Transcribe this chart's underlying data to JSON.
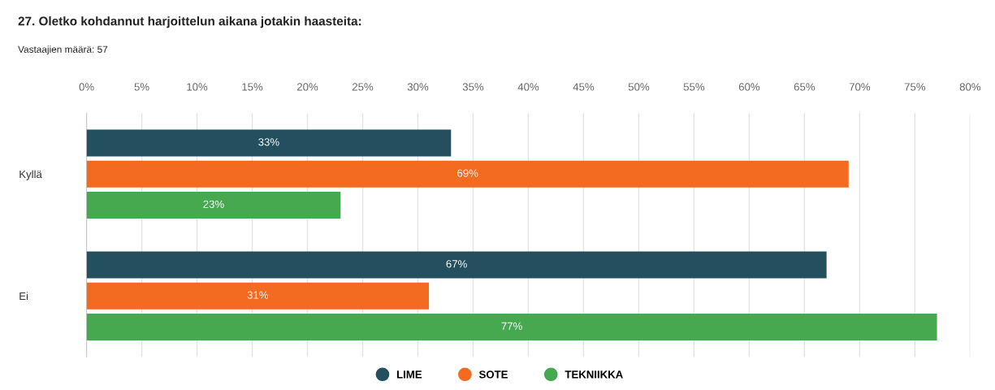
{
  "chart_data": {
    "type": "bar",
    "orientation": "horizontal",
    "title": "27. Oletko kohdannut harjoittelun aikana jotakin haasteita:",
    "subtitle": "Vastaajien määrä: 57",
    "categories": [
      "Kyllä",
      "Ei"
    ],
    "series": [
      {
        "name": "LIME",
        "color": "#234f5e",
        "values": [
          33,
          67
        ],
        "value_labels": [
          "33%",
          "67%"
        ]
      },
      {
        "name": "SOTE",
        "color": "#f26b21",
        "values": [
          69,
          31
        ],
        "value_labels": [
          "69%",
          "31%"
        ]
      },
      {
        "name": "TEKNIIKKA",
        "color": "#46a84f",
        "values": [
          23,
          77
        ],
        "value_labels": [
          "23%",
          "77%"
        ]
      }
    ],
    "xlim": [
      0,
      80
    ],
    "xticks": [
      {
        "value": 0,
        "label": "0%"
      },
      {
        "value": 5,
        "label": "5%"
      },
      {
        "value": 10,
        "label": "10%"
      },
      {
        "value": 15,
        "label": "15%"
      },
      {
        "value": 20,
        "label": "20%"
      },
      {
        "value": 25,
        "label": "25%"
      },
      {
        "value": 30,
        "label": "30%"
      },
      {
        "value": 35,
        "label": "35%"
      },
      {
        "value": 40,
        "label": "40%"
      },
      {
        "value": 45,
        "label": "45%"
      },
      {
        "value": 50,
        "label": "50%"
      },
      {
        "value": 55,
        "label": "55%"
      },
      {
        "value": 60,
        "label": "60%"
      },
      {
        "value": 65,
        "label": "65%"
      },
      {
        "value": 70,
        "label": "70%"
      },
      {
        "value": 75,
        "label": "75%"
      },
      {
        "value": 80,
        "label": "80%"
      }
    ],
    "grid": "x",
    "legend": "bottom",
    "marker": "circle"
  }
}
